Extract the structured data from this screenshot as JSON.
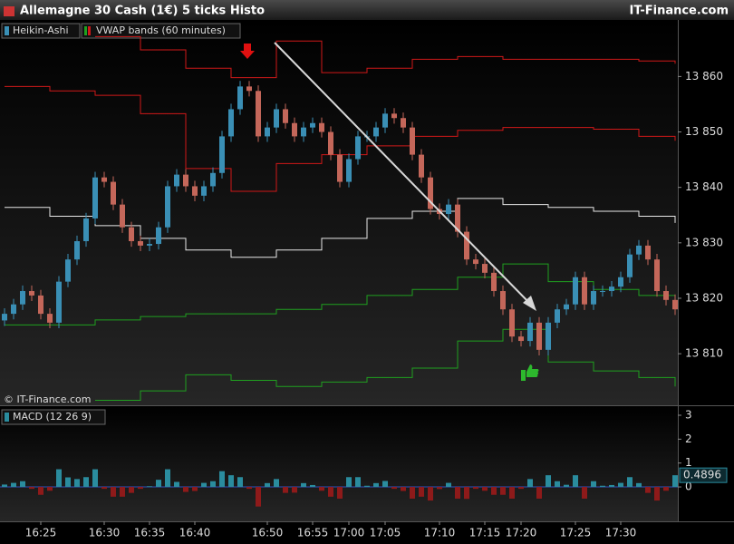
{
  "chart_data": {
    "type": "candlestick",
    "title": "Allemagne 30 Cash (1€) 5 ticks Histo",
    "source": "IT-Finance.com",
    "legend": [
      "Heikin-Ashi",
      "VWAP bands (60 minutes)"
    ],
    "watermark": "© IT-Finance.com",
    "up_color": "#3a8fb5",
    "down_color": "#c4675a",
    "open": [
      13816.0,
      13817.2,
      13818.9,
      13821.3,
      13820.5,
      13817.2,
      13815.6,
      13823.0,
      13827.0,
      13830.3,
      13834.4,
      13841.8,
      13841.0,
      13836.9,
      13832.8,
      13830.3,
      13829.5,
      13829.8,
      13832.8,
      13840.2,
      13842.3,
      13840.2,
      13838.5,
      13840.2,
      13842.6,
      13849.2,
      13854.1,
      13858.2,
      13857.4,
      13849.2,
      13850.8,
      13854.1,
      13851.6,
      13849.2,
      13850.8,
      13851.6,
      13850.0,
      13845.9,
      13841.0,
      13845.1,
      13849.2,
      13849.2,
      13850.8,
      13853.3,
      13852.5,
      13850.8,
      13845.9,
      13841.8,
      13836.1,
      13835.2,
      13836.9,
      13832.0,
      13827.0,
      13826.2,
      13824.6,
      13821.3,
      13818.0,
      13813.1,
      13812.3,
      13815.6,
      13810.7,
      13815.6,
      13818.0,
      13818.9,
      13823.8,
      13818.9,
      13821.3,
      13821.3,
      13822.1,
      13823.8,
      13827.9,
      13829.5,
      13827.0,
      13821.3,
      13819.7
    ],
    "high": [
      13818.2,
      13819.9,
      13822.3,
      13822.3,
      13821.5,
      13818.2,
      13824.0,
      13828.0,
      13831.3,
      13835.4,
      13842.8,
      13842.8,
      13842.0,
      13837.9,
      13833.8,
      13831.3,
      13830.8,
      13833.8,
      13841.2,
      13843.3,
      13843.3,
      13841.2,
      13841.2,
      13843.6,
      13850.2,
      13855.1,
      13859.2,
      13859.2,
      13858.4,
      13851.8,
      13855.1,
      13855.1,
      13852.6,
      13851.8,
      13852.6,
      13852.6,
      13851.0,
      13846.9,
      13846.1,
      13850.2,
      13850.2,
      13851.8,
      13854.3,
      13854.3,
      13853.5,
      13851.8,
      13846.9,
      13842.8,
      13837.1,
      13837.9,
      13837.9,
      13833.0,
      13828.0,
      13827.2,
      13825.6,
      13822.3,
      13819.0,
      13814.1,
      13816.6,
      13816.6,
      13816.6,
      13819.0,
      13819.9,
      13824.8,
      13824.8,
      13822.3,
      13822.3,
      13823.1,
      13824.8,
      13828.9,
      13830.5,
      13830.5,
      13828.0,
      13822.3,
      13820.7
    ],
    "low": [
      13815.0,
      13816.2,
      13817.9,
      13819.5,
      13816.2,
      13814.6,
      13814.6,
      13822.0,
      13826.0,
      13829.3,
      13833.4,
      13840.0,
      13835.9,
      13831.8,
      13829.3,
      13828.5,
      13828.5,
      13828.8,
      13831.8,
      13839.2,
      13839.2,
      13837.5,
      13837.5,
      13839.2,
      13841.6,
      13848.2,
      13853.1,
      13856.4,
      13848.2,
      13848.2,
      13849.8,
      13850.6,
      13848.2,
      13848.2,
      13849.8,
      13849.0,
      13844.9,
      13840.0,
      13840.0,
      13844.1,
      13848.2,
      13848.2,
      13849.8,
      13851.5,
      13849.8,
      13844.9,
      13840.8,
      13835.1,
      13834.2,
      13834.2,
      13831.0,
      13826.0,
      13825.2,
      13823.6,
      13820.3,
      13817.0,
      13812.1,
      13811.3,
      13811.3,
      13809.7,
      13809.7,
      13814.6,
      13817.0,
      13817.9,
      13817.9,
      13817.9,
      13820.3,
      13820.3,
      13821.1,
      13822.8,
      13826.9,
      13826.0,
      13820.3,
      13818.7,
      13817.0
    ],
    "close": [
      13817.2,
      13818.9,
      13821.3,
      13820.5,
      13817.2,
      13815.6,
      13823.0,
      13827.0,
      13830.3,
      13834.4,
      13841.8,
      13841.0,
      13836.9,
      13832.8,
      13830.3,
      13829.5,
      13829.8,
      13832.8,
      13840.2,
      13842.3,
      13840.2,
      13838.5,
      13840.2,
      13842.6,
      13849.2,
      13854.1,
      13858.2,
      13857.4,
      13849.2,
      13850.8,
      13854.1,
      13851.6,
      13849.2,
      13850.8,
      13851.6,
      13850.0,
      13845.9,
      13841.0,
      13845.1,
      13849.2,
      13849.2,
      13850.8,
      13853.3,
      13852.5,
      13850.8,
      13845.9,
      13841.8,
      13836.1,
      13835.2,
      13836.9,
      13832.0,
      13827.0,
      13826.2,
      13824.6,
      13821.3,
      13818.0,
      13813.1,
      13812.3,
      13815.6,
      13810.7,
      13815.6,
      13818.0,
      13818.9,
      13823.8,
      13818.9,
      13821.3,
      13821.3,
      13822.1,
      13823.8,
      13827.9,
      13829.5,
      13827.0,
      13821.3,
      13819.7,
      13818.0
    ],
    "xticks": [
      {
        "value": 4,
        "label": "16:25"
      },
      {
        "value": 11,
        "label": "16:30"
      },
      {
        "value": 16,
        "label": "16:35"
      },
      {
        "value": 21,
        "label": "16:40"
      },
      {
        "value": 29,
        "label": "16:50"
      },
      {
        "value": 34,
        "label": "16:55"
      },
      {
        "value": 38,
        "label": "17:00"
      },
      {
        "value": 42,
        "label": "17:05"
      },
      {
        "value": 48,
        "label": "17:10"
      },
      {
        "value": 53,
        "label": "17:15"
      },
      {
        "value": 57,
        "label": "17:20"
      },
      {
        "value": 63,
        "label": "17:25"
      },
      {
        "value": 68,
        "label": "17:30"
      }
    ],
    "ylim": [
      13800.7,
      13870.2
    ],
    "yticks": [
      {
        "value": 13810,
        "label": "13 810"
      },
      {
        "value": 13820,
        "label": "13 820"
      },
      {
        "value": 13830,
        "label": "13 830"
      },
      {
        "value": 13840,
        "label": "13 840"
      },
      {
        "value": 13850,
        "label": "13 850"
      },
      {
        "value": 13860,
        "label": "13 860"
      }
    ],
    "band_x": [
      0,
      5,
      10,
      15,
      20,
      25,
      30,
      35,
      40,
      45,
      50,
      55,
      60,
      65,
      70,
      74
    ],
    "bands": [
      {
        "color": "#d01818",
        "values": [
          null,
          null,
          13867.2,
          13864.8,
          13861.5,
          13859.8,
          13866.4,
          13860.7,
          13861.5,
          13863.1,
          13863.6,
          13863.1,
          13863.1,
          13863.1,
          13862.8,
          13862.3
        ]
      },
      {
        "color": "#d01818",
        "values": [
          13858.2,
          13857.4,
          13856.6,
          13853.3,
          13843.4,
          13839.3,
          13844.3,
          13845.9,
          13847.5,
          13849.2,
          13850.3,
          13850.8,
          13850.8,
          13850.5,
          13849.2,
          13848.4
        ]
      },
      {
        "color": "#e8e8e8",
        "values": [
          13836.4,
          13834.8,
          13833.1,
          13830.8,
          13828.7,
          13827.4,
          13828.7,
          13830.8,
          13834.4,
          13835.7,
          13838.0,
          13836.9,
          13836.4,
          13835.7,
          13834.8,
          13833.6
        ]
      },
      {
        "color": "#1fa01f",
        "values": [
          13815.2,
          13815.2,
          13816.1,
          13816.7,
          13817.2,
          13817.2,
          13818.0,
          13818.9,
          13820.5,
          13821.6,
          13823.8,
          13826.2,
          13823.0,
          13821.6,
          13820.5,
          13819.7
        ]
      },
      {
        "color": "#1fa01f",
        "values": [
          null,
          null,
          13801.6,
          13803.3,
          13806.2,
          13805.2,
          13804.1,
          13804.9,
          13805.7,
          13807.4,
          13812.3,
          13814.4,
          13808.5,
          13806.9,
          13805.7,
          13804.1
        ]
      }
    ],
    "macd": {
      "title": "MACD (12 26 9)",
      "up_color": "#2a8c9e",
      "down_color": "#8e1a1a",
      "ylim": [
        -1.44,
        3.38
      ],
      "yticks": [
        0,
        1,
        2,
        3
      ],
      "last_value": 0.4896,
      "values": [
        0.1,
        0.17,
        0.24,
        -0.08,
        -0.33,
        -0.16,
        0.74,
        0.4,
        0.33,
        0.41,
        0.74,
        -0.08,
        -0.41,
        -0.41,
        -0.25,
        -0.08,
        0.03,
        0.3,
        0.74,
        0.21,
        -0.21,
        -0.17,
        0.17,
        0.24,
        0.66,
        0.49,
        0.41,
        -0.08,
        -0.82,
        0.16,
        0.33,
        -0.25,
        -0.24,
        0.16,
        0.08,
        -0.16,
        -0.41,
        -0.49,
        0.41,
        0.41,
        0.05,
        0.16,
        0.25,
        -0.08,
        -0.17,
        -0.49,
        -0.41,
        -0.57,
        -0.09,
        0.17,
        -0.49,
        -0.5,
        -0.08,
        -0.16,
        -0.33,
        -0.33,
        -0.49,
        -0.08,
        0.33,
        -0.49,
        0.49,
        0.24,
        0.09,
        0.49,
        -0.49,
        0.24,
        0.05,
        0.08,
        0.17,
        0.41,
        0.16,
        -0.25,
        -0.57,
        -0.16,
        0.49
      ]
    }
  }
}
